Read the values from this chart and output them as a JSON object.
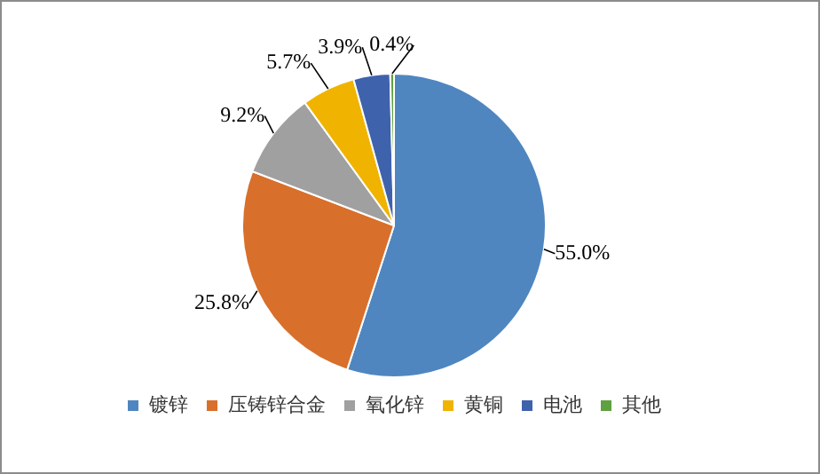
{
  "chart_data": {
    "type": "pie",
    "categories": [
      "镀锌",
      "压铸锌合金",
      "氧化锌",
      "黄铜",
      "电池",
      "其他"
    ],
    "values": [
      55.0,
      25.8,
      9.2,
      5.7,
      3.9,
      0.4
    ],
    "colors": [
      "#4f86c0",
      "#d86f2b",
      "#a0a0a0",
      "#f0b400",
      "#3f62ad",
      "#5fa040"
    ],
    "value_labels": [
      "55.0%",
      "25.8%",
      "9.2%",
      "5.7%",
      "3.9%",
      "0.4%"
    ],
    "legend": "bottom"
  }
}
